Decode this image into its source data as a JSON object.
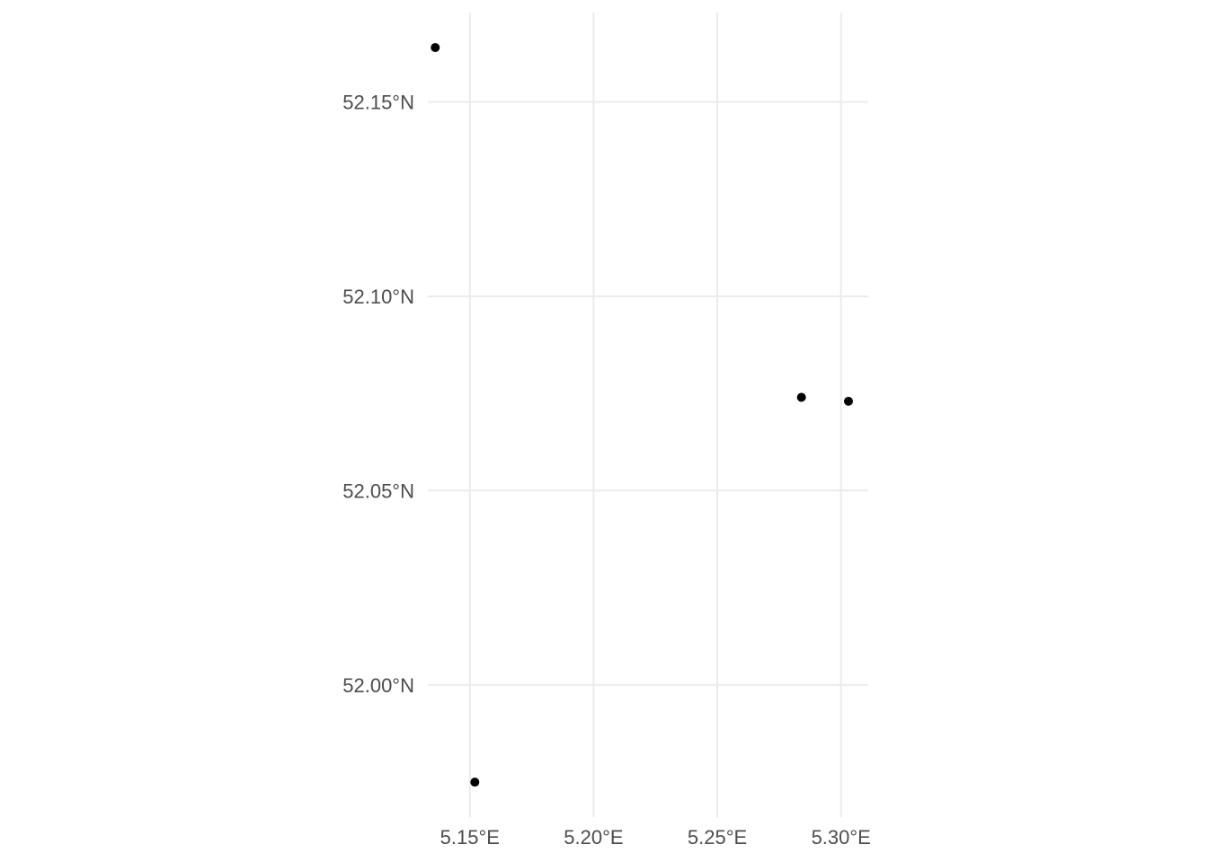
{
  "chart_data": {
    "type": "scatter",
    "title": "",
    "xlabel": "",
    "ylabel": "",
    "xlim": [
      5.133,
      5.311
    ],
    "ylim": [
      51.966,
      52.173
    ],
    "x_ticks": [
      5.15,
      5.2,
      5.25,
      5.3
    ],
    "x_tick_labels": [
      "5.15°E",
      "5.20°E",
      "5.25°E",
      "5.30°E"
    ],
    "y_ticks": [
      52.0,
      52.05,
      52.1,
      52.15
    ],
    "y_tick_labels": [
      "52.00°N",
      "52.05°N",
      "52.10°N",
      "52.15°N"
    ],
    "grid": true,
    "legend": "none",
    "point_color": "#000000",
    "grid_color": "#ebebeb",
    "points": [
      {
        "lon": 5.136,
        "lat": 52.164
      },
      {
        "lon": 5.284,
        "lat": 52.074
      },
      {
        "lon": 5.303,
        "lat": 52.073
      },
      {
        "lon": 5.152,
        "lat": 51.975
      }
    ]
  }
}
